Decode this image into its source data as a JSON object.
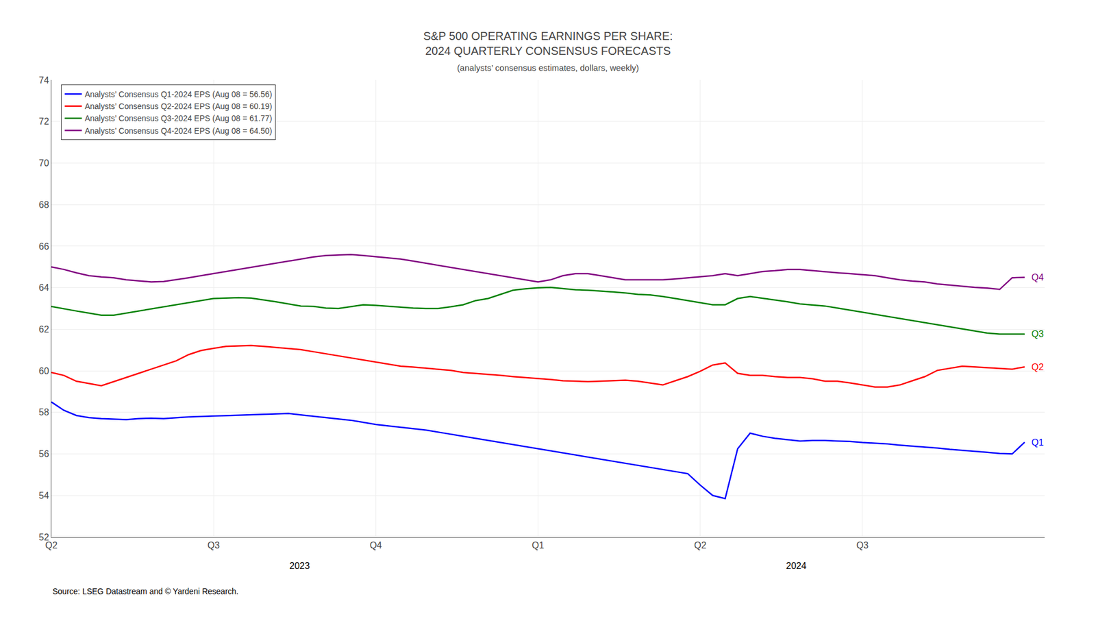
{
  "chart_data": {
    "type": "line",
    "title": "S&P 500 OPERATING EARNINGS PER SHARE:\n2024 QUARTERLY CONSENSUS FORECASTS",
    "subtitle": "(analysts’ consensus estimates, dollars, weekly)",
    "source": "Source: LSEG Datastream and © Yardeni Research.",
    "annotations": [
      "2023",
      "2024"
    ],
    "categories": [
      "Q2",
      null,
      null,
      null,
      null,
      null,
      null,
      null,
      null,
      null,
      null,
      null,
      null,
      "Q3",
      null,
      null,
      null,
      null,
      null,
      null,
      null,
      null,
      null,
      null,
      null,
      null,
      "Q4",
      null,
      null,
      null,
      null,
      null,
      null,
      null,
      null,
      null,
      null,
      null,
      null,
      "Q1",
      null,
      null,
      null,
      null,
      null,
      null,
      null,
      null,
      null,
      null,
      null,
      null,
      "Q2",
      null,
      null,
      null,
      null,
      null,
      null,
      null,
      null,
      null,
      null,
      null,
      null,
      "Q3",
      null,
      null,
      null,
      null,
      null,
      null,
      null,
      null,
      null,
      null,
      null,
      null,
      null
    ],
    "series": [
      {
        "name": "Analysts’ Consensus Q1-2024 EPS (Aug 08 = 56.56)",
        "label": "Q1",
        "color": "#0000ff",
        "values": [
          58.5,
          58.1,
          57.85,
          57.75,
          57.7,
          57.68,
          57.65,
          57.7,
          57.72,
          57.7,
          57.75,
          57.78,
          57.8,
          57.82,
          57.83,
          57.85,
          57.88,
          57.9,
          57.92,
          57.95,
          57.88,
          57.82,
          57.75,
          57.68,
          57.62,
          57.52,
          57.42,
          57.35,
          57.28,
          57.22,
          57.15,
          57.05,
          56.95,
          56.85,
          56.75,
          56.65,
          56.55,
          56.45,
          56.35,
          56.25,
          56.15,
          56.05,
          55.95,
          55.85,
          55.75,
          55.65,
          55.55,
          55.45,
          55.35,
          55.25,
          55.15,
          55.05,
          54.5,
          54.0,
          53.85,
          56.25,
          57.0,
          56.85,
          56.75,
          56.68,
          56.62,
          56.65,
          56.65,
          56.62,
          56.6,
          56.55,
          56.52,
          56.48,
          56.42,
          56.38,
          56.32,
          56.28,
          56.22,
          56.18,
          56.12,
          56.08,
          56.02,
          56.0,
          56.56
        ]
      },
      {
        "name": "Analysts’ Consensus Q2-2024 EPS (Aug 08 = 60.19)",
        "label": "Q2",
        "color": "#ff0000",
        "values": [
          59.92,
          59.78,
          59.5,
          59.38,
          59.28,
          59.48,
          59.68,
          59.88,
          60.08,
          60.28,
          60.48,
          60.78,
          60.98,
          61.08,
          61.18,
          61.2,
          61.22,
          61.18,
          61.12,
          61.08,
          61.02,
          60.92,
          60.82,
          60.72,
          60.62,
          60.52,
          60.42,
          60.32,
          60.22,
          60.18,
          60.12,
          60.08,
          60.02,
          59.92,
          59.88,
          59.82,
          59.78,
          59.72,
          59.68,
          59.62,
          59.58,
          59.52,
          59.5,
          59.48,
          59.5,
          59.52,
          59.55,
          59.5,
          59.42,
          59.32,
          59.52,
          59.72,
          59.98,
          60.28,
          60.38,
          59.88,
          59.78,
          59.78,
          59.72,
          59.68,
          59.68,
          59.62,
          59.5,
          59.5,
          59.42,
          59.32,
          59.22,
          59.22,
          59.32,
          59.52,
          59.72,
          60.02,
          60.12,
          60.22,
          60.19,
          60.15,
          60.12,
          60.08,
          60.19
        ]
      },
      {
        "name": "Analysts’ Consensus Q3-2024 EPS (Aug 08 = 61.77)",
        "label": "Q3",
        "color": "#008000",
        "values": [
          63.1,
          62.98,
          62.88,
          62.78,
          62.68,
          62.68,
          62.78,
          62.88,
          62.98,
          63.08,
          63.18,
          63.28,
          63.38,
          63.48,
          63.5,
          63.52,
          63.5,
          63.42,
          63.32,
          63.22,
          63.12,
          63.1,
          63.02,
          63.0,
          63.1,
          63.18,
          63.15,
          63.1,
          63.05,
          63.02,
          63.0,
          63.0,
          63.08,
          63.18,
          63.38,
          63.48,
          63.68,
          63.88,
          63.95,
          64.0,
          64.02,
          63.95,
          63.9,
          63.88,
          63.85,
          63.8,
          63.75,
          63.68,
          63.65,
          63.58,
          63.48,
          63.38,
          63.28,
          63.18,
          63.18,
          63.48,
          63.58,
          63.5,
          63.42,
          63.32,
          63.22,
          63.18,
          63.12,
          63.02,
          62.92,
          62.82,
          62.72,
          62.62,
          62.52,
          62.42,
          62.32,
          62.22,
          62.12,
          62.02,
          61.92,
          61.82,
          61.77,
          61.77,
          61.77
        ]
      },
      {
        "name": "Analysts’ Consensus Q4-2024 EPS (Aug 08 = 64.50)",
        "label": "Q4",
        "color": "#800080",
        "values": [
          65.0,
          64.88,
          64.72,
          64.58,
          64.52,
          64.48,
          64.38,
          64.32,
          64.28,
          64.3,
          64.38,
          64.48,
          64.58,
          64.68,
          64.78,
          64.88,
          64.98,
          65.08,
          65.18,
          65.28,
          65.38,
          65.48,
          65.55,
          65.58,
          65.6,
          65.55,
          65.5,
          65.45,
          65.38,
          65.28,
          65.18,
          65.08,
          64.98,
          64.88,
          64.78,
          64.68,
          64.58,
          64.48,
          64.38,
          64.28,
          64.38,
          64.58,
          64.68,
          64.68,
          64.58,
          64.48,
          64.38,
          64.38,
          64.38,
          64.38,
          64.42,
          64.48,
          64.52,
          64.58,
          64.68,
          64.58,
          64.68,
          64.78,
          64.82,
          64.88,
          64.88,
          64.82,
          64.78,
          64.72,
          64.68,
          64.62,
          64.58,
          64.48,
          64.38,
          64.32,
          64.28,
          64.18,
          64.12,
          64.08,
          64.02,
          63.98,
          63.92,
          64.48,
          64.5
        ]
      }
    ],
    "ylim": [
      52,
      74
    ],
    "yticks": [
      52,
      54,
      56,
      58,
      60,
      62,
      64,
      66,
      68,
      70,
      72,
      74
    ],
    "grid": true,
    "legend": "upper left"
  }
}
